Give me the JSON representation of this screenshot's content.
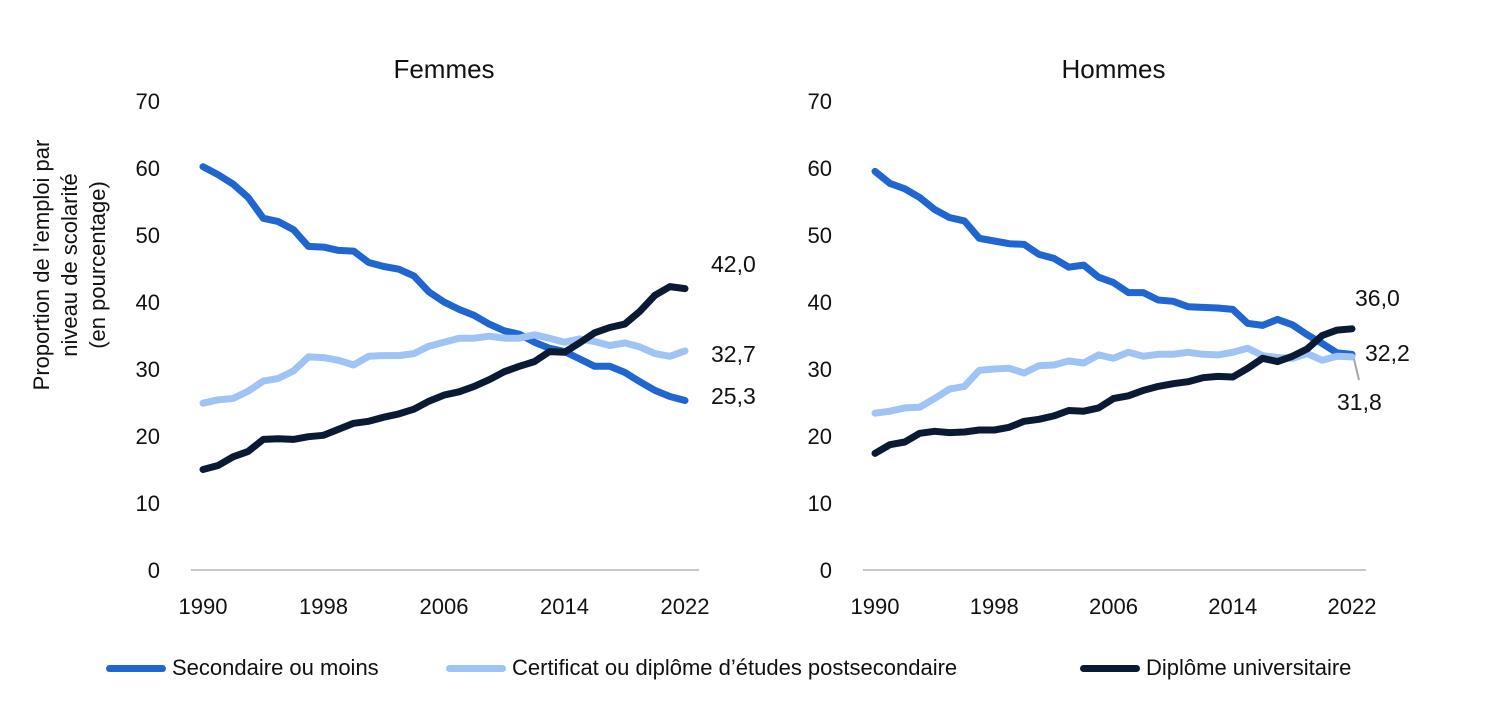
{
  "chart_data": [
    {
      "type": "line",
      "title": "Femmes",
      "ylabel": "Proportion de l’emploi par niveau de scolarité (en pourcentage)",
      "ylim": [
        0,
        70
      ],
      "yticks": [
        "0",
        "10",
        "20",
        "30",
        "40",
        "50",
        "60",
        "70"
      ],
      "xticks": [
        "1990",
        "1998",
        "2006",
        "2014",
        "2022"
      ],
      "x": [
        1990,
        1991,
        1992,
        1993,
        1994,
        1995,
        1996,
        1997,
        1998,
        1999,
        2000,
        2001,
        2002,
        2003,
        2004,
        2005,
        2006,
        2007,
        2008,
        2009,
        2010,
        2011,
        2012,
        2013,
        2014,
        2015,
        2016,
        2017,
        2018,
        2019,
        2020,
        2021,
        2022
      ],
      "series": [
        {
          "name": "Secondaire ou moins",
          "color": "#1f66d1",
          "values": [
            60.2,
            59.0,
            57.6,
            55.6,
            52.5,
            52.0,
            50.8,
            48.3,
            48.2,
            47.7,
            47.6,
            45.9,
            45.3,
            44.9,
            43.9,
            41.5,
            40.0,
            38.9,
            38.0,
            36.7,
            35.7,
            35.2,
            34.0,
            33.1,
            32.6,
            31.5,
            30.4,
            30.4,
            29.5,
            28.1,
            26.8,
            25.9,
            25.3
          ],
          "end_label": "25,3"
        },
        {
          "name": "Certificat ou diplôme d’études postsecondaire",
          "color": "#9fc3f5",
          "values": [
            24.9,
            25.4,
            25.6,
            26.7,
            28.2,
            28.6,
            29.7,
            31.8,
            31.7,
            31.3,
            30.6,
            31.9,
            32.0,
            32.0,
            32.3,
            33.4,
            34.0,
            34.6,
            34.6,
            34.9,
            34.6,
            34.6,
            35.1,
            34.6,
            34.0,
            34.5,
            34.1,
            33.5,
            33.9,
            33.3,
            32.3,
            31.9,
            32.7
          ],
          "end_label": "32,7"
        },
        {
          "name": "Diplôme universitaire",
          "color": "#0b1a33",
          "values": [
            15.0,
            15.6,
            16.9,
            17.7,
            19.5,
            19.6,
            19.5,
            19.9,
            20.1,
            21.0,
            21.9,
            22.2,
            22.8,
            23.3,
            24.0,
            25.2,
            26.1,
            26.6,
            27.4,
            28.4,
            29.6,
            30.4,
            31.1,
            32.6,
            32.5,
            33.9,
            35.4,
            36.2,
            36.7,
            38.6,
            41.0,
            42.3,
            42.0
          ],
          "end_label": "42,0"
        }
      ]
    },
    {
      "type": "line",
      "title": "Hommes",
      "ylim": [
        0,
        70
      ],
      "yticks": [
        "0",
        "10",
        "20",
        "30",
        "40",
        "50",
        "60",
        "70"
      ],
      "xticks": [
        "1990",
        "1998",
        "2006",
        "2014",
        "2022"
      ],
      "x": [
        1990,
        1991,
        1992,
        1993,
        1994,
        1995,
        1996,
        1997,
        1998,
        1999,
        2000,
        2001,
        2002,
        2003,
        2004,
        2005,
        2006,
        2007,
        2008,
        2009,
        2010,
        2011,
        2012,
        2013,
        2014,
        2015,
        2016,
        2017,
        2018,
        2019,
        2020,
        2021,
        2022
      ],
      "series": [
        {
          "name": "Secondaire ou moins",
          "color": "#1f66d1",
          "values": [
            59.5,
            57.7,
            56.9,
            55.6,
            53.8,
            52.6,
            52.1,
            49.5,
            49.1,
            48.7,
            48.6,
            47.1,
            46.5,
            45.2,
            45.5,
            43.7,
            42.9,
            41.4,
            41.4,
            40.3,
            40.1,
            39.3,
            39.2,
            39.1,
            38.9,
            36.8,
            36.5,
            37.4,
            36.6,
            35.1,
            33.8,
            32.4,
            32.2
          ],
          "end_label": "32,2"
        },
        {
          "name": "Certificat ou diplôme d’études postsecondaire",
          "color": "#9fc3f5",
          "values": [
            23.4,
            23.7,
            24.2,
            24.3,
            25.6,
            27.0,
            27.4,
            29.8,
            30.0,
            30.1,
            29.4,
            30.5,
            30.6,
            31.2,
            30.9,
            32.1,
            31.6,
            32.5,
            31.9,
            32.2,
            32.2,
            32.5,
            32.2,
            32.1,
            32.5,
            33.1,
            32.0,
            31.7,
            31.6,
            32.3,
            31.3,
            31.9,
            31.8
          ],
          "end_label": "31,8"
        },
        {
          "name": "Diplôme universitaire",
          "color": "#0b1a33",
          "values": [
            17.4,
            18.7,
            19.1,
            20.4,
            20.7,
            20.5,
            20.6,
            20.9,
            20.9,
            21.3,
            22.2,
            22.5,
            23.0,
            23.8,
            23.7,
            24.2,
            25.6,
            26.0,
            26.8,
            27.4,
            27.8,
            28.1,
            28.7,
            28.9,
            28.8,
            30.1,
            31.6,
            31.1,
            31.9,
            33.0,
            35.0,
            35.8,
            36.0
          ],
          "end_label": "36,0"
        }
      ]
    }
  ],
  "legend": [
    {
      "label": "Secondaire ou moins",
      "color": "#1f66d1"
    },
    {
      "label": "Certificat ou diplôme d’études postsecondaire",
      "color": "#9fc3f5"
    },
    {
      "label": "Diplôme universitaire",
      "color": "#0b1a33"
    }
  ]
}
